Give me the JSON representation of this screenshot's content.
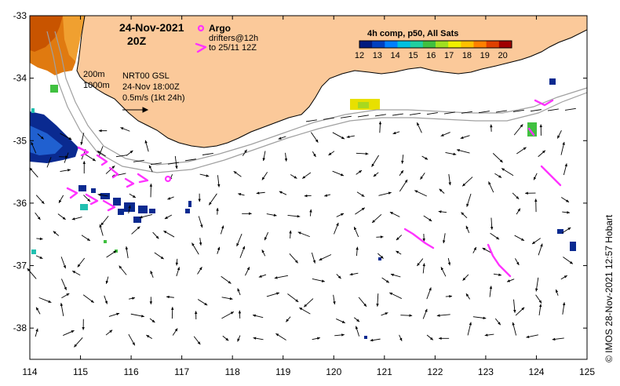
{
  "map": {
    "date_line1": "24-Nov-2021",
    "date_line2": "20Z",
    "argo_label": "Argo",
    "drifter_line1": "drifters@12h",
    "drifter_line2": "to 25/11 12Z",
    "contour_200": "200m",
    "contour_1000": "1000m",
    "product_line1": "NRT00 GSL",
    "product_line2": "24-Nov 18:00Z",
    "scale_label": "0.5m/s (1kt 24h)",
    "credit": "© IMOS 28-Nov-2021 12:57 Hobart",
    "lon_ticks": [
      "114",
      "115",
      "116",
      "117",
      "118",
      "119",
      "120",
      "121",
      "122",
      "123",
      "124",
      "125"
    ],
    "lat_ticks": [
      "-33",
      "-34",
      "-35",
      "-36",
      "-37",
      "-38"
    ],
    "lon_range": [
      114,
      125
    ],
    "lat_range": [
      -38.5,
      -33
    ],
    "colors": {
      "land": "#fbc99a",
      "coast": "#000000",
      "argo": "#ff33ff",
      "drifter": "#ff33ff",
      "arrow": "#000000",
      "contour": "#a0a0a0"
    }
  },
  "legend": {
    "title": "4h comp, p50, All Sats",
    "ticks": [
      "12",
      "13",
      "14",
      "15",
      "16",
      "17",
      "18",
      "19",
      "20"
    ],
    "range": [
      12,
      20.5
    ],
    "colors": [
      "#001a80",
      "#0040c0",
      "#0080ff",
      "#00c0e0",
      "#20d0a0",
      "#40c040",
      "#a0e020",
      "#f0f000",
      "#ffc000",
      "#ff8000",
      "#e04000",
      "#a00000"
    ]
  }
}
